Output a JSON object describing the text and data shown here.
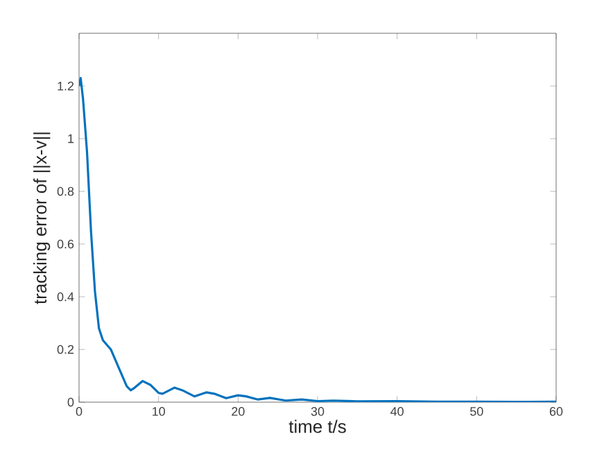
{
  "chart_data": {
    "type": "line",
    "xlabel": "time t/s",
    "ylabel": "tracking error of ||x-v||",
    "xlim": [
      0,
      60
    ],
    "ylim": [
      0,
      1.4
    ],
    "xticks": [
      0,
      10,
      20,
      30,
      40,
      50,
      60
    ],
    "yticks": [
      0,
      0.2,
      0.4,
      0.6,
      0.8,
      1,
      1.2
    ],
    "line_style": "solid",
    "marker": "none",
    "series": [
      {
        "color": "#0072bd",
        "x": [
          0,
          0.2,
          0.5,
          1,
          1.5,
          2,
          2.5,
          3,
          4,
          5,
          6,
          6.5,
          7,
          8,
          9,
          10,
          10.5,
          12,
          13,
          14.5,
          16,
          17,
          18.5,
          20,
          21,
          22.5,
          24,
          26,
          28,
          30,
          32,
          35,
          40,
          45,
          50,
          55,
          60
        ],
        "values": [
          1.2,
          1.23,
          1.15,
          0.95,
          0.65,
          0.42,
          0.28,
          0.235,
          0.2,
          0.13,
          0.06,
          0.045,
          0.055,
          0.08,
          0.065,
          0.035,
          0.032,
          0.055,
          0.045,
          0.022,
          0.037,
          0.032,
          0.015,
          0.026,
          0.022,
          0.01,
          0.016,
          0.006,
          0.01,
          0.004,
          0.006,
          0.003,
          0.004,
          0.002,
          0.002,
          0.001,
          0.002
        ]
      }
    ]
  }
}
